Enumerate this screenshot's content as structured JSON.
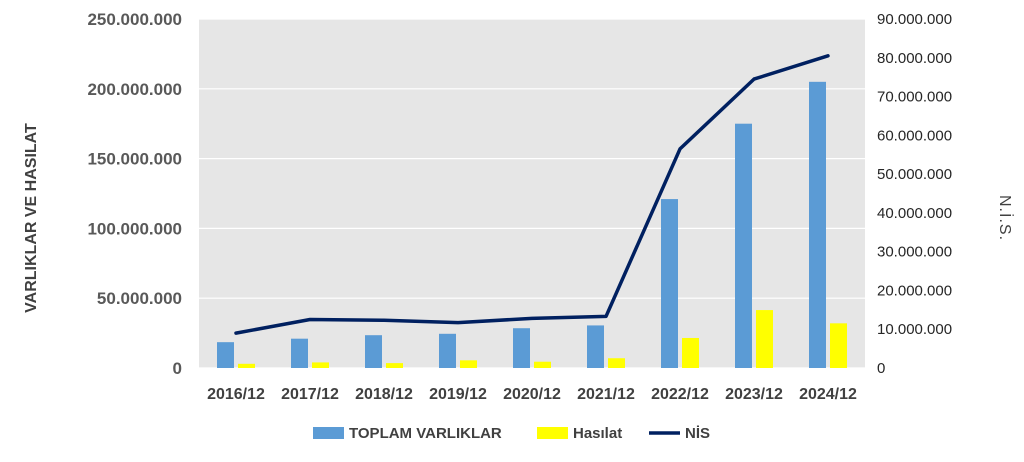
{
  "chart_data": {
    "type": "bar",
    "categories": [
      "2016/12",
      "2017/12",
      "2018/12",
      "2019/12",
      "2020/12",
      "2021/12",
      "2022/12",
      "2023/12",
      "2024/12"
    ],
    "series": [
      {
        "name": "TOPLAM VARLIKLAR",
        "type": "bar",
        "axis": "left",
        "color": "#5b9bd5",
        "values": [
          18500000,
          21000000,
          23500000,
          24500000,
          28500000,
          30500000,
          121000000,
          175000000,
          205000000
        ]
      },
      {
        "name": "Hasılat",
        "type": "bar",
        "axis": "left",
        "color": "#ffff00",
        "values": [
          3000000,
          4000000,
          3500000,
          5500000,
          4500000,
          7000000,
          21500000,
          41500000,
          32000000
        ]
      },
      {
        "name": "NİS",
        "type": "line",
        "axis": "right",
        "color": "#002060",
        "values": [
          9000000,
          12500000,
          12300000,
          11700000,
          12800000,
          13300000,
          56500000,
          74500000,
          80500000
        ]
      }
    ],
    "ylabel": "VARLIKLAR VE HASILAT",
    "y2label": "N.İ.S.",
    "ylim": [
      0,
      250000000
    ],
    "y2lim": [
      0,
      90000000
    ],
    "yticks": [
      "0",
      "50.000.000",
      "100.000.000",
      "150.000.000",
      "200.000.000",
      "250.000.000"
    ],
    "y2ticks": [
      "0",
      "10.000.000",
      "20.000.000",
      "30.000.000",
      "40.000.000",
      "50.000.000",
      "60.000.000",
      "70.000.000",
      "80.000.000",
      "90.000.000"
    ],
    "grid": true,
    "legend_position": "bottom",
    "plot_background": "#e6e6e6"
  }
}
